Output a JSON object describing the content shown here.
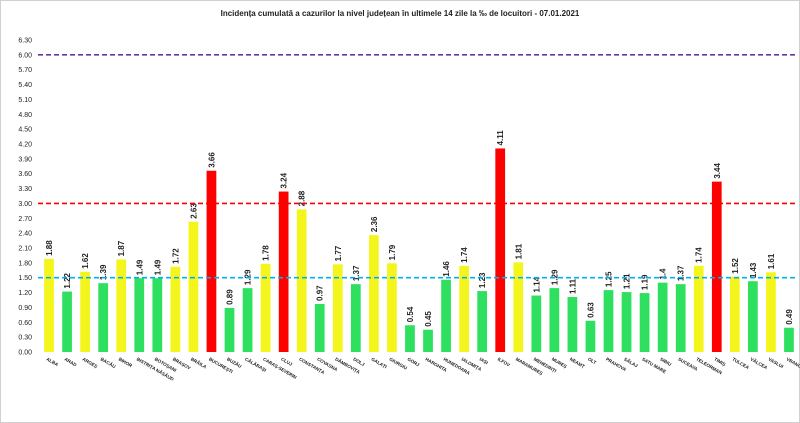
{
  "chart_data": {
    "type": "bar",
    "title": "Incidența cumulată a cazurilor la nivel județean în ultimele 14 zile la ‰ de locuitori - 07.01.2021",
    "categories": [
      "ALBA",
      "ARAD",
      "ARGEȘ",
      "BACĂU",
      "BIHOR",
      "BISTRIȚA NĂSĂUD",
      "BOTOȘANI",
      "BRAȘOV",
      "BRĂILA",
      "BUCUREȘTI",
      "BUZĂU",
      "CĂLĂRAȘI",
      "CARAȘ-SEVERIN",
      "CLUJ",
      "CONSTANȚA",
      "COVASNA",
      "DÂMBOVIȚA",
      "DOLJ",
      "GALAȚI",
      "GIURGIU",
      "GORJ",
      "HARGHITA",
      "HUNEDOARA",
      "IALOMIȚA",
      "IAȘI",
      "ILFOV",
      "MARAMUREȘ",
      "MEHEDINȚI",
      "MUREȘ",
      "NEAMȚ",
      "OLT",
      "PRAHOVA",
      "SĂLAJ",
      "SATU MARE",
      "SIBIU",
      "SUCEAVA",
      "TELEORMAN",
      "TIMIȘ",
      "TULCEA",
      "VÂLCEA",
      "VASLUI",
      "VRANCEA"
    ],
    "values": [
      1.88,
      1.22,
      1.62,
      1.39,
      1.87,
      1.49,
      1.49,
      1.72,
      2.63,
      3.66,
      0.89,
      1.29,
      1.78,
      3.24,
      2.88,
      0.97,
      1.77,
      1.37,
      2.36,
      1.79,
      0.54,
      0.45,
      1.46,
      1.74,
      1.23,
      4.11,
      1.81,
      1.14,
      1.29,
      1.11,
      0.63,
      1.25,
      1.21,
      1.19,
      1.4,
      1.37,
      1.74,
      3.44,
      1.52,
      1.43,
      1.61,
      0.49
    ],
    "colors": [
      "#f5f51e",
      "#2fe060",
      "#f5f51e",
      "#2fe060",
      "#f5f51e",
      "#2fe060",
      "#2fe060",
      "#f5f51e",
      "#f5f51e",
      "#ff0000",
      "#2fe060",
      "#2fe060",
      "#f5f51e",
      "#ff0000",
      "#f5f51e",
      "#2fe060",
      "#f5f51e",
      "#2fe060",
      "#f5f51e",
      "#f5f51e",
      "#2fe060",
      "#2fe060",
      "#2fe060",
      "#f5f51e",
      "#2fe060",
      "#ff0000",
      "#f5f51e",
      "#2fe060",
      "#2fe060",
      "#2fe060",
      "#2fe060",
      "#2fe060",
      "#2fe060",
      "#2fe060",
      "#2fe060",
      "#2fe060",
      "#f5f51e",
      "#ff0000",
      "#f5f51e",
      "#2fe060",
      "#f5f51e",
      "#2fe060"
    ],
    "ylim": [
      0,
      6.3
    ],
    "yticks": [
      {
        "value": 0,
        "label": "0.00"
      },
      {
        "value": 0.3,
        "label": "0.30"
      },
      {
        "value": 0.6,
        "label": "0.60"
      },
      {
        "value": 0.9,
        "label": "0.90"
      },
      {
        "value": 1.2,
        "label": "1.20"
      },
      {
        "value": 1.5,
        "label": "1.50"
      },
      {
        "value": 1.8,
        "label": "1.80"
      },
      {
        "value": 2.1,
        "label": "2.10"
      },
      {
        "value": 2.4,
        "label": "2.40"
      },
      {
        "value": 2.7,
        "label": "2.70"
      },
      {
        "value": 3.0,
        "label": "3.00"
      },
      {
        "value": 3.3,
        "label": "3.30"
      },
      {
        "value": 3.6,
        "label": "3.60"
      },
      {
        "value": 3.9,
        "label": "3.90"
      },
      {
        "value": 4.2,
        "label": "4.20"
      },
      {
        "value": 4.5,
        "label": "4.50"
      },
      {
        "value": 4.8,
        "label": "4.80"
      },
      {
        "value": 5.1,
        "label": "5.10"
      },
      {
        "value": 5.4,
        "label": "5.40"
      },
      {
        "value": 5.7,
        "label": "5.70"
      },
      {
        "value": 6.0,
        "label": "6.00"
      },
      {
        "value": 6.3,
        "label": "6.30"
      }
    ],
    "reference_lines": [
      {
        "value": 6.0,
        "color": "#7030a0"
      },
      {
        "value": 3.0,
        "color": "#ff0000"
      },
      {
        "value": 1.5,
        "color": "#00b0f0"
      }
    ],
    "grid": false
  }
}
